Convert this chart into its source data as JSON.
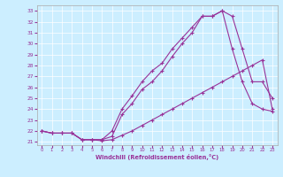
{
  "xlabel": "Windchill (Refroidissement éolien,°C)",
  "background_color": "#cceeff",
  "line_color": "#993399",
  "grid_color": "#aaddcc",
  "xlim": [
    -0.5,
    23.5
  ],
  "ylim": [
    20.7,
    33.5
  ],
  "xticks": [
    0,
    1,
    2,
    3,
    4,
    5,
    6,
    7,
    8,
    9,
    10,
    11,
    12,
    13,
    14,
    15,
    16,
    17,
    18,
    19,
    20,
    21,
    22,
    23
  ],
  "yticks": [
    21,
    22,
    23,
    24,
    25,
    26,
    27,
    28,
    29,
    30,
    31,
    32,
    33
  ],
  "series1_x": [
    0,
    1,
    2,
    3,
    4,
    5,
    6,
    7,
    8,
    9,
    10,
    11,
    12,
    13,
    14,
    15,
    16,
    17,
    18,
    19,
    20,
    21,
    22,
    23
  ],
  "series1_y": [
    22.0,
    21.8,
    21.8,
    21.8,
    21.2,
    21.2,
    21.1,
    21.2,
    21.6,
    22.0,
    22.5,
    23.0,
    23.5,
    24.0,
    24.5,
    25.0,
    25.5,
    26.0,
    26.5,
    27.0,
    27.5,
    28.0,
    28.5,
    24.0
  ],
  "series2_x": [
    0,
    1,
    2,
    3,
    4,
    5,
    6,
    7,
    8,
    9,
    10,
    11,
    12,
    13,
    14,
    15,
    16,
    17,
    18,
    19,
    20,
    21,
    22,
    23
  ],
  "series2_y": [
    22.0,
    21.8,
    21.8,
    21.8,
    21.2,
    21.2,
    21.2,
    22.0,
    24.0,
    25.2,
    26.5,
    27.5,
    28.2,
    29.5,
    30.5,
    31.5,
    32.5,
    32.5,
    33.0,
    29.5,
    26.5,
    24.5,
    24.0,
    23.8
  ],
  "series3_x": [
    0,
    1,
    2,
    3,
    4,
    5,
    6,
    7,
    8,
    9,
    10,
    11,
    12,
    13,
    14,
    15,
    16,
    17,
    18,
    19,
    20,
    21,
    22,
    23
  ],
  "series3_y": [
    22.0,
    21.8,
    21.8,
    21.8,
    21.2,
    21.2,
    21.2,
    21.5,
    23.5,
    24.5,
    25.8,
    26.5,
    27.5,
    28.8,
    30.0,
    31.0,
    32.5,
    32.5,
    33.0,
    32.5,
    29.5,
    26.5,
    26.5,
    25.0
  ]
}
